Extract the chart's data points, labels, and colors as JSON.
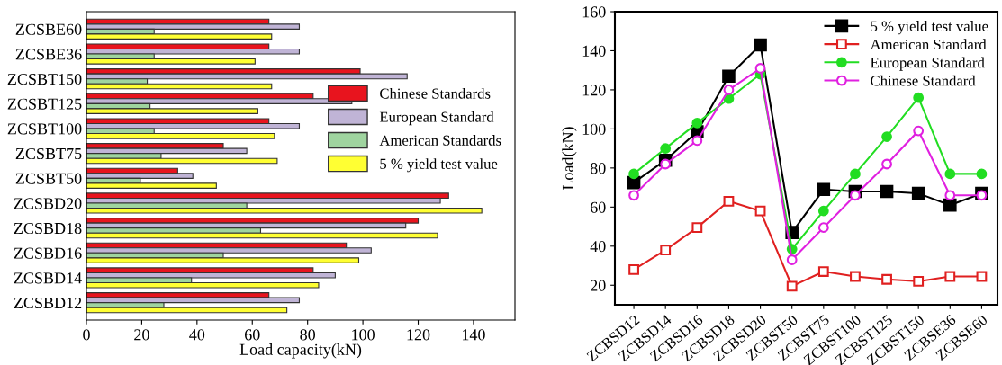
{
  "chart_data": [
    {
      "type": "bar",
      "orientation": "horizontal",
      "xlabel": "Load capacity(kN)",
      "xlim": [
        0,
        155
      ],
      "xticks": [
        0,
        20,
        40,
        60,
        80,
        100,
        120,
        140
      ],
      "legend": "right",
      "categories": [
        "ZCSBE60",
        "ZCSBE36",
        "ZCSBT150",
        "ZCSBT125",
        "ZCSBT100",
        "ZCSBT75",
        "ZCSBT50",
        "ZCSBD20",
        "ZCSBD18",
        "ZCSBD16",
        "ZCSBD14",
        "ZCSBD12"
      ],
      "series": [
        {
          "name": "Chinese Standards",
          "color": "#e8141e",
          "values": [
            66,
            66,
            99,
            82,
            66,
            49.5,
            33,
            131,
            120,
            94,
            82,
            66
          ]
        },
        {
          "name": "European Standard",
          "color": "#c0b4d6",
          "values": [
            77,
            77,
            116,
            96,
            77,
            58,
            38.5,
            128,
            115.5,
            103,
            90,
            77
          ]
        },
        {
          "name": "American Standards",
          "color": "#9fd49f",
          "values": [
            24.5,
            24.5,
            22,
            23,
            24.5,
            27,
            19.5,
            58,
            63,
            49.5,
            38,
            28
          ]
        },
        {
          "name": "5 % yield test value",
          "color": "#ffff33",
          "values": [
            67,
            61,
            67,
            62,
            68,
            69,
            47,
            143,
            127,
            98.5,
            84,
            72.5
          ]
        }
      ]
    },
    {
      "type": "line",
      "ylabel": "Load(kN)",
      "ylim": [
        10,
        160
      ],
      "yticks": [
        20,
        40,
        60,
        80,
        100,
        120,
        140,
        160
      ],
      "legend": "top right",
      "categories": [
        "ZCBSD12",
        "ZCBSD14",
        "ZCBSD16",
        "ZCBSD18",
        "ZCBSD20",
        "ZCBST50",
        "ZCBST75",
        "ZCBST100",
        "ZCBST125",
        "ZCBST150",
        "ZCBSE36",
        "ZCBSE60"
      ],
      "series": [
        {
          "name": "5 % yield test value",
          "color": "#000000",
          "marker": "square",
          "values": [
            72.5,
            84,
            98.5,
            127,
            143,
            47,
            69,
            68,
            68,
            67,
            61,
            67
          ]
        },
        {
          "name": "American Standard",
          "color": "#e02020",
          "marker": "square",
          "values": [
            28,
            38,
            49.5,
            63,
            58,
            19.5,
            27,
            24.5,
            23,
            22,
            24.5,
            24.5
          ]
        },
        {
          "name": "European Standard",
          "color": "#22dd22",
          "marker": "circle",
          "values": [
            77,
            90,
            103,
            115.5,
            128,
            38.5,
            58,
            77,
            96,
            116,
            77,
            77
          ]
        },
        {
          "name": "Chinese Standard",
          "color": "#e020e0",
          "marker": "circle",
          "values": [
            66,
            82,
            94,
            120,
            131,
            33,
            49.5,
            66,
            82,
            99,
            66,
            66
          ]
        }
      ]
    }
  ]
}
